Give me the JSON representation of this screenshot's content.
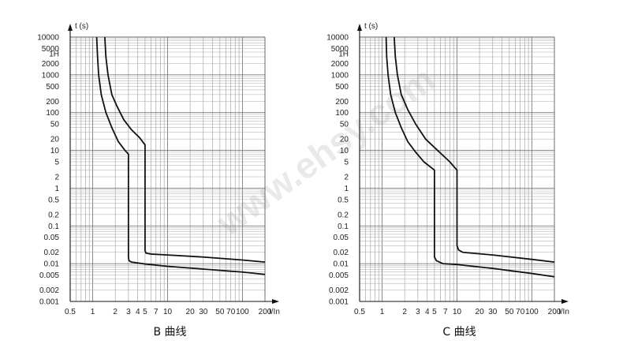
{
  "watermark": "www.ehsy.com",
  "chart_data": [
    {
      "type": "line",
      "caption": "B 曲线",
      "xlabel": "I/In",
      "ylabel": "t (s)",
      "xscale": "log",
      "yscale": "log",
      "xlim": [
        0.5,
        200
      ],
      "ylim": [
        0.001,
        10000
      ],
      "xticks": [
        "0.5",
        "1",
        "2",
        "3",
        "4",
        "5",
        "7",
        "10",
        "20",
        "30",
        "50",
        "70",
        "100",
        "200"
      ],
      "xtick_values": [
        0.5,
        1,
        2,
        3,
        4,
        5,
        7,
        10,
        20,
        30,
        50,
        70,
        100,
        200
      ],
      "yticks": [
        "0.001",
        "0.002",
        "0.005",
        "0.01",
        "0.02",
        "0.05",
        "0.1",
        "0.2",
        "0.5",
        "1",
        "2",
        "5",
        "10",
        "20",
        "50",
        "100",
        "200",
        "500",
        "1000",
        "2000",
        "1H",
        "5000",
        "10000"
      ],
      "ytick_values": [
        0.001,
        0.002,
        0.005,
        0.01,
        0.02,
        0.05,
        0.1,
        0.2,
        0.5,
        1,
        2,
        5,
        10,
        20,
        50,
        100,
        200,
        500,
        1000,
        2000,
        3600,
        5000,
        10000
      ],
      "grid": true,
      "series": [
        {
          "x": [
            1.13,
            1.16,
            1.2,
            1.3,
            1.5,
            1.8,
            2.2,
            2.7,
            3,
            3,
            3.05,
            3.3,
            5,
            10,
            30,
            100,
            200
          ],
          "y": [
            10000,
            3000,
            1000,
            300,
            100,
            40,
            17,
            10,
            8,
            0.015,
            0.012,
            0.011,
            0.0098,
            0.0085,
            0.0072,
            0.006,
            0.0052
          ]
        },
        {
          "x": [
            1.45,
            1.5,
            1.6,
            1.8,
            2.1,
            2.6,
            3.3,
            4.2,
            5,
            5,
            5.15,
            6,
            10,
            30,
            100,
            200
          ],
          "y": [
            10000,
            3000,
            1000,
            300,
            150,
            65,
            35,
            22,
            14,
            0.022,
            0.019,
            0.018,
            0.017,
            0.015,
            0.0125,
            0.011
          ]
        }
      ]
    },
    {
      "type": "line",
      "caption": "C 曲线",
      "xlabel": "I/In",
      "ylabel": "t (s)",
      "xscale": "log",
      "yscale": "log",
      "xlim": [
        0.5,
        200
      ],
      "ylim": [
        0.001,
        10000
      ],
      "xticks": [
        "0.5",
        "1",
        "2",
        "3",
        "4",
        "5",
        "7",
        "10",
        "20",
        "30",
        "50",
        "70",
        "100",
        "200"
      ],
      "xtick_values": [
        0.5,
        1,
        2,
        3,
        4,
        5,
        7,
        10,
        20,
        30,
        50,
        70,
        100,
        200
      ],
      "yticks": [
        "0.001",
        "0.002",
        "0.005",
        "0.01",
        "0.02",
        "0.05",
        "0.1",
        "0.2",
        "0.5",
        "1",
        "2",
        "5",
        "10",
        "20",
        "50",
        "100",
        "200",
        "500",
        "1000",
        "2000",
        "1H",
        "5000",
        "10000"
      ],
      "ytick_values": [
        0.001,
        0.002,
        0.005,
        0.01,
        0.02,
        0.05,
        0.1,
        0.2,
        0.5,
        1,
        2,
        5,
        10,
        20,
        50,
        100,
        200,
        500,
        1000,
        2000,
        3600,
        5000,
        10000
      ],
      "grid": true,
      "series": [
        {
          "x": [
            1.13,
            1.15,
            1.2,
            1.3,
            1.5,
            1.8,
            2.2,
            2.8,
            3.6,
            5,
            5,
            5.3,
            6.5,
            10,
            30,
            100,
            200
          ],
          "y": [
            10000,
            3000,
            1000,
            300,
            100,
            40,
            17,
            9,
            5,
            3,
            0.015,
            0.012,
            0.01,
            0.0095,
            0.0075,
            0.0055,
            0.0045
          ]
        },
        {
          "x": [
            1.45,
            1.5,
            1.6,
            1.8,
            2.2,
            2.8,
            3.8,
            5.5,
            8,
            10,
            10,
            10.5,
            12,
            30,
            100,
            200
          ],
          "y": [
            10000,
            3000,
            1000,
            300,
            120,
            50,
            20,
            10,
            5,
            3,
            0.03,
            0.023,
            0.02,
            0.017,
            0.013,
            0.011
          ]
        }
      ]
    }
  ]
}
